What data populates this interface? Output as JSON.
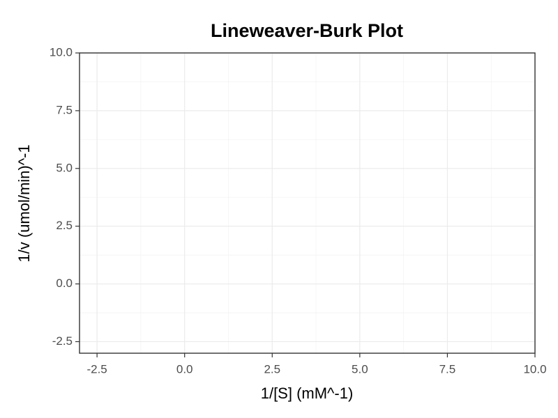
{
  "chart_data": {
    "type": "scatter",
    "title": "Lineweaver-Burk Plot",
    "x_label": "1/[S] (mM^-1)",
    "y_label": "1/v (umol/min)^-1",
    "xlim": [
      -3,
      10
    ],
    "ylim": [
      -3,
      10
    ],
    "xticks": [
      -2.5,
      {
        "value": 0,
        "label": "0.0"
      },
      2.5,
      {
        "value": 5,
        "label": "5.0"
      },
      7.5,
      {
        "value": 10,
        "label": "10.0"
      }
    ],
    "yticks": [
      -2.5,
      {
        "value": 0,
        "label": "0.0"
      },
      2.5,
      {
        "value": 5,
        "label": "5.0"
      },
      7.5,
      {
        "value": 10,
        "label": "10.0"
      }
    ],
    "grid": true
  }
}
